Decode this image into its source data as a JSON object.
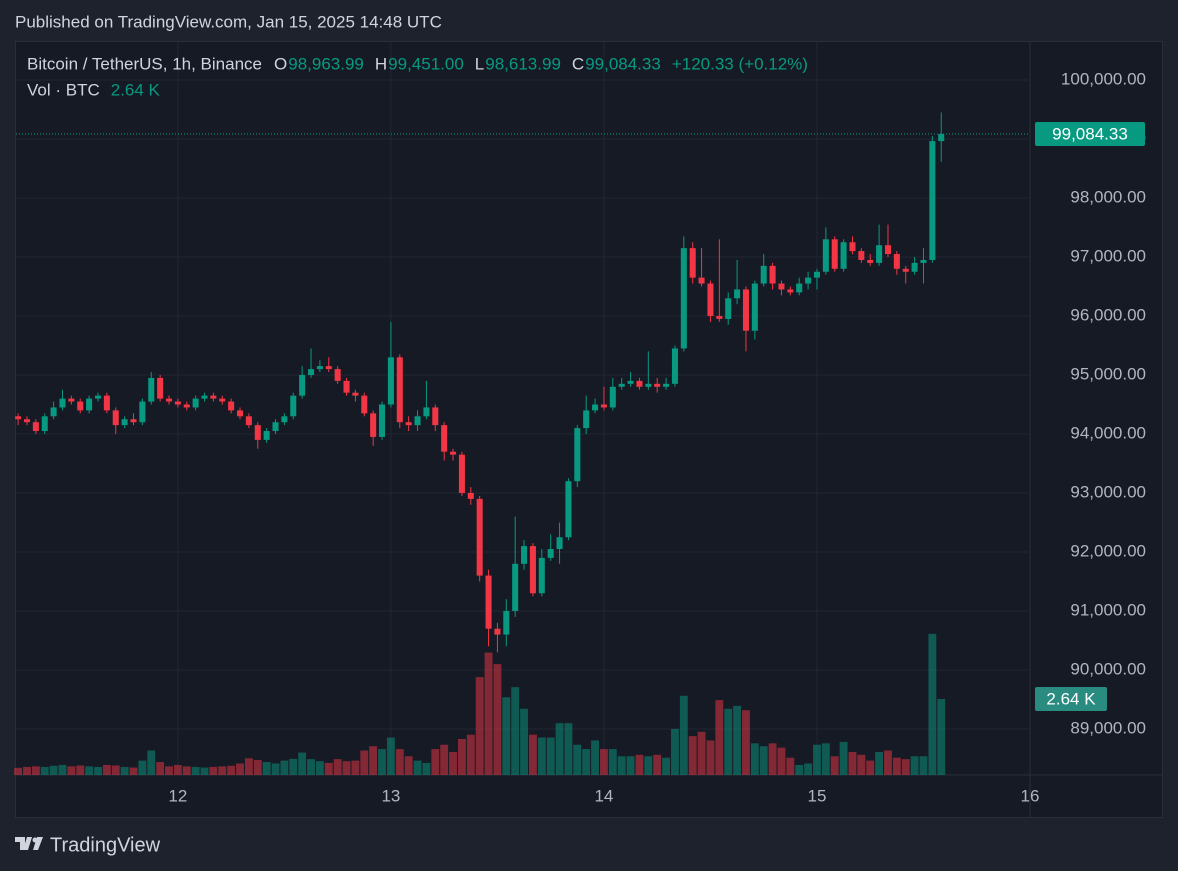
{
  "published": "Published on TradingView.com, Jan 15, 2025 14:48 UTC",
  "brand": "TradingView",
  "chart_data": {
    "type": "candlestick",
    "symbol": "Bitcoin / TetherUS, 1h, Binance",
    "ohlc_legend": [
      {
        "key": "O",
        "text": "98,963.99"
      },
      {
        "key": "H",
        "text": "99,451.00"
      },
      {
        "key": "L",
        "text": "98,613.99"
      },
      {
        "key": "C",
        "text": "99,084.33"
      }
    ],
    "change": "+120.33 (+0.12%)",
    "volume_name": "Vol · BTC",
    "volume_legend": "2.64 K",
    "last_price_label": "99,084.33",
    "last_volume_label": "2.64 K",
    "up_color": "#089981",
    "down_color": "#f23645",
    "open": [
      94300,
      94250,
      94200,
      94050,
      94300,
      94450,
      94600,
      94550,
      94400,
      94600,
      94650,
      94400,
      94150,
      94250,
      94200,
      94550,
      94950,
      94600,
      94550,
      94500,
      94450,
      94600,
      94650,
      94600,
      94550,
      94400,
      94300,
      94150,
      93900,
      94050,
      94200,
      94300,
      94650,
      95000,
      95100,
      95150,
      95100,
      94900,
      94700,
      94650,
      94350,
      93950,
      94500,
      95300,
      94200,
      94150,
      94300,
      94450,
      94150,
      93700,
      93650,
      93000,
      92900,
      91600,
      90700,
      90600,
      91000,
      91800,
      92100,
      91300,
      91900,
      92050,
      92250,
      93200,
      94100,
      94400,
      94500,
      94450,
      94800,
      94850,
      94900,
      94800,
      94850,
      94800,
      94850,
      95450,
      97150,
      96650,
      96550,
      96000,
      95950,
      96300,
      96450,
      95750,
      96550,
      96850,
      96550,
      96450,
      96400,
      96550,
      96650,
      96750,
      97300,
      96800,
      97250,
      97100,
      96950,
      96900,
      97200,
      97050,
      96800,
      96750,
      96900,
      96950,
      98963.99
    ],
    "high": [
      94350,
      94300,
      94250,
      94350,
      94550,
      94750,
      94650,
      94600,
      94650,
      94700,
      94700,
      94450,
      94300,
      94350,
      94600,
      95050,
      95000,
      94650,
      94600,
      94550,
      94650,
      94700,
      94700,
      94650,
      94600,
      94450,
      94350,
      94200,
      94100,
      94250,
      94350,
      94700,
      95150,
      95450,
      95250,
      95300,
      95150,
      94950,
      94750,
      94700,
      94400,
      94550,
      95900,
      95350,
      94300,
      94400,
      94900,
      94500,
      94200,
      93750,
      93700,
      93100,
      92950,
      91700,
      90800,
      91200,
      92600,
      92200,
      92150,
      92050,
      92300,
      92500,
      93250,
      94150,
      94650,
      94600,
      94800,
      94950,
      94950,
      95050,
      94950,
      95400,
      94950,
      94950,
      95500,
      97350,
      97250,
      97150,
      96600,
      97300,
      96400,
      96950,
      96500,
      96600,
      97050,
      96900,
      96600,
      96500,
      96650,
      96750,
      96800,
      97500,
      97350,
      97300,
      97350,
      97150,
      97050,
      97550,
      97550,
      97100,
      96850,
      97000,
      97150,
      99050,
      99451.0
    ],
    "low": [
      94150,
      94150,
      94000,
      94000,
      94250,
      94400,
      94500,
      94350,
      94350,
      94550,
      94350,
      94000,
      94100,
      94150,
      94150,
      94500,
      94550,
      94500,
      94450,
      94400,
      94400,
      94550,
      94550,
      94500,
      94350,
      94250,
      94100,
      93750,
      93850,
      94000,
      94150,
      94250,
      94600,
      94950,
      95050,
      95050,
      94850,
      94650,
      94550,
      94300,
      93800,
      93900,
      94450,
      94100,
      94050,
      94050,
      94250,
      94050,
      93550,
      93550,
      92950,
      92800,
      91500,
      90400,
      90300,
      90400,
      90900,
      91700,
      91250,
      91250,
      91850,
      91800,
      92200,
      93100,
      94000,
      94350,
      94400,
      94400,
      94750,
      94800,
      94750,
      94750,
      94700,
      94750,
      94800,
      95400,
      96550,
      96500,
      95900,
      95900,
      95850,
      96200,
      95400,
      95600,
      96500,
      96450,
      96350,
      96350,
      96350,
      96450,
      96450,
      96700,
      96750,
      96750,
      97050,
      96900,
      96850,
      96850,
      97000,
      96700,
      96550,
      96700,
      96550,
      96900,
      98613.99
    ],
    "close": [
      94250,
      94200,
      94050,
      94300,
      94450,
      94600,
      94550,
      94400,
      94600,
      94650,
      94400,
      94150,
      94250,
      94200,
      94550,
      94950,
      94600,
      94550,
      94500,
      94450,
      94600,
      94650,
      94600,
      94550,
      94400,
      94300,
      94150,
      93900,
      94050,
      94200,
      94300,
      94650,
      95000,
      95100,
      95150,
      95100,
      94900,
      94700,
      94650,
      94350,
      93950,
      94500,
      95300,
      94200,
      94150,
      94300,
      94450,
      94150,
      93700,
      93650,
      93000,
      92900,
      91600,
      90700,
      90600,
      91000,
      91800,
      92100,
      91300,
      91900,
      92050,
      92250,
      93200,
      94100,
      94400,
      94500,
      94450,
      94800,
      94850,
      94900,
      94800,
      94850,
      94800,
      94850,
      95450,
      97150,
      96650,
      96550,
      96000,
      95950,
      96300,
      96450,
      95750,
      96550,
      96850,
      96550,
      96450,
      96400,
      96550,
      96650,
      96750,
      97300,
      96800,
      97250,
      97100,
      96950,
      96900,
      97200,
      97050,
      96800,
      96750,
      96900,
      96950,
      98963.99,
      99084.33
    ],
    "volume": [
      250,
      280,
      300,
      280,
      320,
      350,
      300,
      330,
      300,
      280,
      350,
      330,
      280,
      260,
      500,
      850,
      450,
      300,
      350,
      300,
      280,
      260,
      280,
      300,
      320,
      400,
      580,
      520,
      450,
      400,
      500,
      560,
      780,
      550,
      480,
      420,
      550,
      480,
      500,
      850,
      1000,
      900,
      1300,
      900,
      650,
      500,
      420,
      900,
      1050,
      800,
      1250,
      1400,
      3400,
      4250,
      3850,
      2700,
      3050,
      2300,
      1400,
      1300,
      1300,
      1800,
      1800,
      1050,
      900,
      1200,
      900,
      900,
      650,
      650,
      700,
      650,
      700,
      600,
      1600,
      2750,
      1350,
      1500,
      1200,
      2600,
      2300,
      2400,
      2250,
      1100,
      1000,
      1100,
      950,
      600,
      350,
      400,
      1050,
      1100,
      650,
      1150,
      800,
      700,
      500,
      800,
      850,
      600,
      550,
      650,
      650,
      4900,
      2640
    ],
    "xlim": [
      -0.35,
      114
    ],
    "xticks": [
      {
        "value": 18,
        "label": "12"
      },
      {
        "value": 42,
        "label": "13"
      },
      {
        "value": 66,
        "label": "14"
      },
      {
        "value": 90,
        "label": "15"
      },
      {
        "value": 114,
        "label": "16"
      }
    ],
    "ylim": [
      88220,
      100644
    ],
    "yticks": [
      {
        "value": 89000,
        "label": "89,000.00"
      },
      {
        "value": 90000,
        "label": "90,000.00"
      },
      {
        "value": 91000,
        "label": "91,000.00"
      },
      {
        "value": 92000,
        "label": "92,000.00"
      },
      {
        "value": 93000,
        "label": "93,000.00"
      },
      {
        "value": 94000,
        "label": "94,000.00"
      },
      {
        "value": 95000,
        "label": "95,000.00"
      },
      {
        "value": 96000,
        "label": "96,000.00"
      },
      {
        "value": 97000,
        "label": "97,000.00"
      },
      {
        "value": 98000,
        "label": "98,000.00"
      },
      {
        "value": 99000,
        "label": "99,000.00"
      },
      {
        "value": 100000,
        "label": "100,000.00"
      }
    ],
    "volume_ylim": [
      0,
      25450
    ],
    "grid": true
  }
}
